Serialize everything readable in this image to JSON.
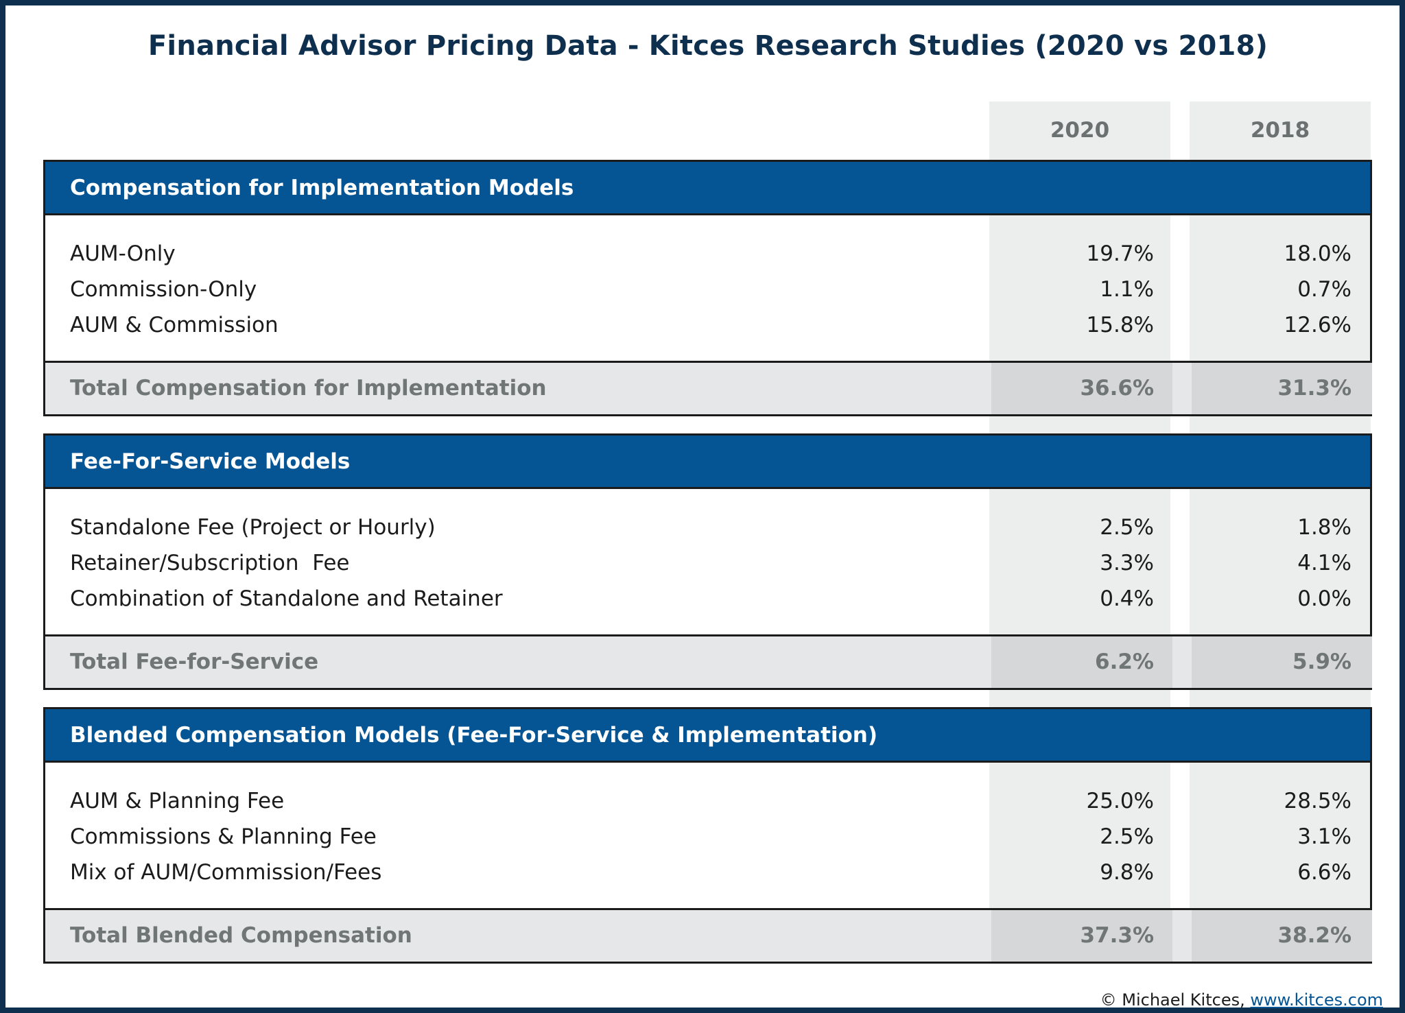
{
  "chart_data": {
    "type": "table",
    "title": "Financial Advisor Pricing Data - Kitces Research Studies (2020 vs 2018)",
    "columns": [
      "2020",
      "2018"
    ],
    "sections": [
      {
        "header": "Compensation for Implementation Models",
        "rows": [
          {
            "label": "AUM-Only",
            "values": [
              "19.7%",
              "18.0%"
            ]
          },
          {
            "label": "Commission-Only",
            "values": [
              "1.1%",
              "0.7%"
            ]
          },
          {
            "label": "AUM & Commission",
            "values": [
              "15.8%",
              "12.6%"
            ]
          }
        ],
        "total": {
          "label": "Total Compensation for Implementation",
          "values": [
            "36.6%",
            "31.3%"
          ]
        }
      },
      {
        "header": "Fee-For-Service Models",
        "rows": [
          {
            "label": "Standalone Fee (Project or Hourly)",
            "values": [
              "2.5%",
              "1.8%"
            ]
          },
          {
            "label": "Retainer/Subscription  Fee",
            "values": [
              "3.3%",
              "4.1%"
            ]
          },
          {
            "label": "Combination of Standalone and Retainer",
            "values": [
              "0.4%",
              "0.0%"
            ]
          }
        ],
        "total": {
          "label": "Total Fee-for-Service",
          "values": [
            "6.2%",
            "5.9%"
          ]
        }
      },
      {
        "header": "Blended Compensation Models (Fee-For-Service & Implementation)",
        "rows": [
          {
            "label": "AUM & Planning Fee",
            "values": [
              "25.0%",
              "28.5%"
            ]
          },
          {
            "label": "Commissions & Planning Fee",
            "values": [
              "2.5%",
              "3.1%"
            ]
          },
          {
            "label": "Mix of AUM/Commission/Fees",
            "values": [
              "9.8%",
              "6.6%"
            ]
          }
        ],
        "total": {
          "label": "Total Blended Compensation",
          "values": [
            "37.3%",
            "38.2%"
          ]
        }
      }
    ]
  },
  "footer": {
    "copyright": "© Michael Kitces,",
    "link": "www.kitces.com"
  }
}
